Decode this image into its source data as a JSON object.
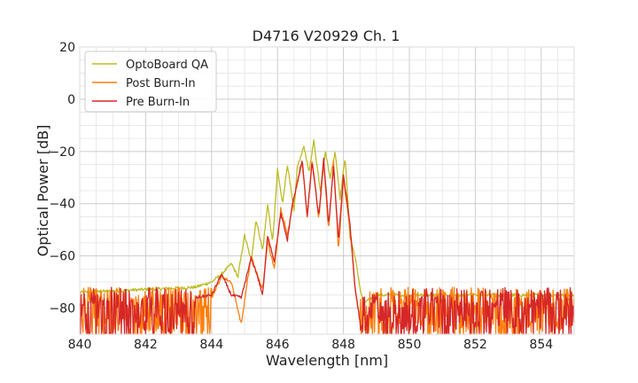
{
  "chart_data": {
    "type": "line",
    "title": "D4716 V20929 Ch. 1",
    "xlabel": "Wavelength [nm]",
    "ylabel": "Optical Power [dB]",
    "xlim": [
      840,
      855
    ],
    "ylim": [
      -90,
      20
    ],
    "xticks": [
      "840",
      "842",
      "844",
      "846",
      "848",
      "850",
      "852",
      "854"
    ],
    "yticks": [
      "20",
      "0",
      "−20",
      "−40",
      "−60",
      "−80"
    ],
    "grid": "major and minor",
    "legend_position": "upper-left",
    "noise_floor": {
      "OptoBoard QA": -74,
      "Post Burn-In": -85,
      "Pre Burn-In": -85
    },
    "series": [
      {
        "name": "OptoBoard QA",
        "color": "#bcbd22",
        "x": [
          840.0,
          843.5,
          844.0,
          844.3,
          844.6,
          844.8,
          845.0,
          845.2,
          845.35,
          845.55,
          845.7,
          845.85,
          846.0,
          846.15,
          846.3,
          846.5,
          846.6,
          846.8,
          846.95,
          847.1,
          847.3,
          847.45,
          847.6,
          847.75,
          847.9,
          848.05,
          848.2,
          848.35,
          848.5,
          848.6,
          848.75,
          849.0,
          855.0
        ],
        "y": [
          -74,
          -72,
          -70,
          -67,
          -63,
          -68,
          -52,
          -62,
          -46,
          -58,
          -40,
          -55,
          -27,
          -40,
          -25,
          -43,
          -26,
          -18,
          -28,
          -16,
          -35,
          -20,
          -30,
          -20,
          -38,
          -22,
          -53,
          -60,
          -72,
          -78,
          -77,
          -75,
          -75
        ]
      },
      {
        "name": "Post Burn-In",
        "color": "#ff7f0e",
        "x": [
          844.0,
          844.3,
          844.6,
          844.9,
          845.2,
          845.35,
          845.55,
          845.7,
          845.9,
          846.1,
          846.3,
          846.45,
          846.55,
          846.75,
          846.9,
          847.05,
          847.25,
          847.4,
          847.55,
          847.7,
          847.85,
          848.0,
          848.2,
          848.35,
          848.5
        ],
        "y": [
          -76,
          -68,
          -70,
          -86,
          -60,
          -66,
          -73,
          -54,
          -65,
          -42,
          -52,
          -41,
          -35,
          -24,
          -45,
          -23,
          -46,
          -24,
          -50,
          -24,
          -58,
          -30,
          -50,
          -72,
          -85
        ]
      },
      {
        "name": "Pre Burn-In",
        "color": "#d62728",
        "x": [
          843.5,
          844.0,
          844.3,
          844.6,
          844.9,
          845.2,
          845.35,
          845.55,
          845.7,
          845.9,
          846.1,
          846.3,
          846.45,
          846.55,
          846.75,
          846.9,
          847.05,
          847.25,
          847.4,
          847.55,
          847.7,
          847.85,
          848.0,
          848.2,
          848.35,
          848.5
        ],
        "y": [
          -76,
          -75,
          -67,
          -75,
          -76,
          -61,
          -66,
          -75,
          -52,
          -62,
          -44,
          -54,
          -40,
          -35,
          -23,
          -45,
          -24,
          -45,
          -23,
          -48,
          -26,
          -54,
          -29,
          -48,
          -72,
          -85
        ]
      }
    ]
  }
}
